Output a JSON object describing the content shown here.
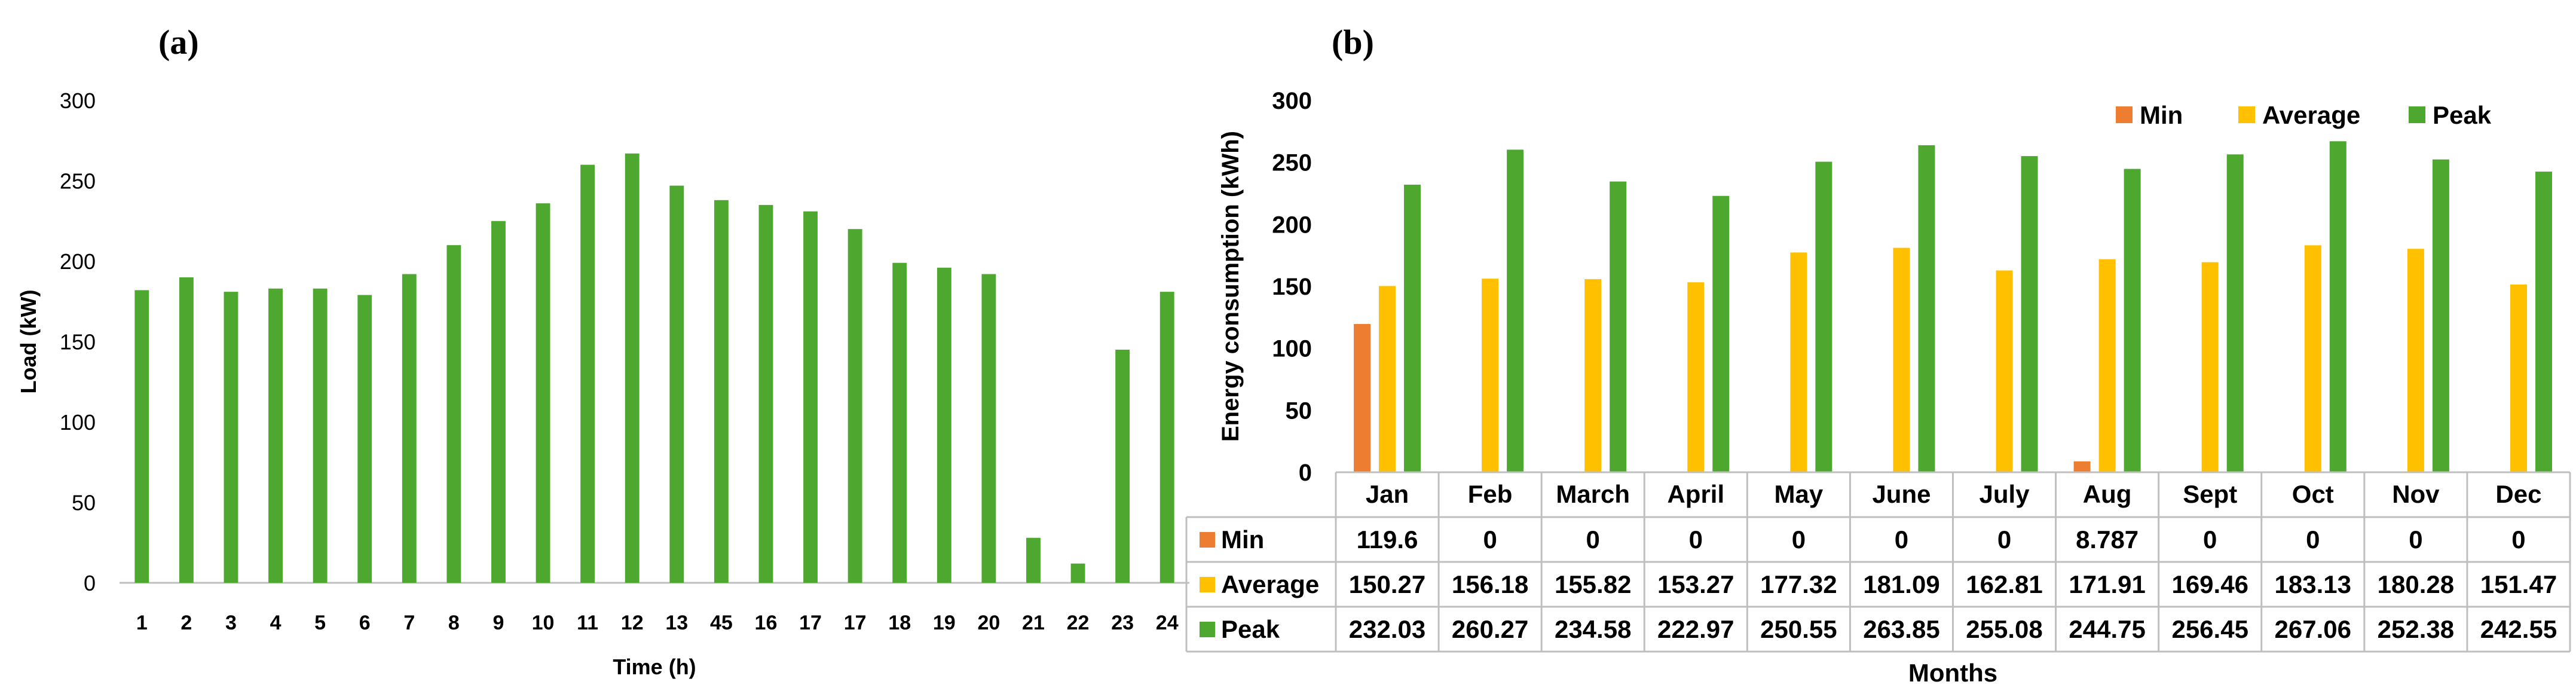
{
  "figure": {
    "label_a": "(a)",
    "label_b": "(b)"
  },
  "colors": {
    "min": "#ED7D31",
    "average": "#FFC000",
    "peak": "#4EA72E",
    "axis": "#BFBFBF",
    "text": "#000000"
  },
  "chart_data": [
    {
      "id": "a",
      "type": "bar",
      "title": "",
      "xlabel": "Time (h)",
      "ylabel": "Load (kW)",
      "ylim": [
        0,
        300
      ],
      "yticks": [
        0,
        50,
        100,
        150,
        200,
        250,
        300
      ],
      "grid": false,
      "categories": [
        "1",
        "2",
        "3",
        "4",
        "5",
        "6",
        "7",
        "8",
        "9",
        "10",
        "11",
        "12",
        "13",
        "45",
        "16",
        "17",
        "17",
        "18",
        "19",
        "20",
        "21",
        "22",
        "23",
        "24"
      ],
      "series": [
        {
          "name": "Load",
          "values": [
            182,
            190,
            181,
            183,
            183,
            179,
            192,
            210,
            225,
            236,
            260,
            267,
            247,
            238,
            235,
            231,
            220,
            199,
            196,
            192,
            28,
            12,
            145,
            181
          ]
        }
      ]
    },
    {
      "id": "b",
      "type": "bar",
      "title": "",
      "xlabel": "Months",
      "ylabel": "Energy consumption (kWh)",
      "ylim": [
        0,
        300
      ],
      "yticks": [
        0,
        50,
        100,
        150,
        200,
        250,
        300
      ],
      "grid": false,
      "legend_position": "top-right",
      "categories": [
        "Jan",
        "Feb",
        "March",
        "April",
        "May",
        "June",
        "July",
        "Aug",
        "Sept",
        "Oct",
        "Nov",
        "Dec"
      ],
      "series": [
        {
          "name": "Min",
          "values": [
            119.6,
            0,
            0,
            0,
            0,
            0,
            0,
            8.787,
            0,
            0,
            0,
            0
          ],
          "labels": [
            "119.6",
            "0",
            "0",
            "0",
            "0",
            "0",
            "0",
            "8.787",
            "0",
            "0",
            "0",
            "0"
          ]
        },
        {
          "name": "Average",
          "values": [
            150.27,
            156.18,
            155.82,
            153.27,
            177.32,
            181.09,
            162.81,
            171.91,
            169.46,
            183.13,
            180.28,
            151.47
          ],
          "labels": [
            "150.27",
            "156.18",
            "155.82",
            "153.27",
            "177.32",
            "181.09",
            "162.81",
            "171.91",
            "169.46",
            "183.13",
            "180.28",
            "151.47"
          ]
        },
        {
          "name": "Peak",
          "values": [
            232.03,
            260.27,
            234.58,
            222.97,
            250.55,
            263.85,
            255.08,
            244.75,
            256.45,
            267.06,
            252.38,
            242.55
          ],
          "labels": [
            "232.03",
            "260.27",
            "234.58",
            "222.97",
            "250.55",
            "263.85",
            "255.08",
            "244.75",
            "256.45",
            "267.06",
            "252.38",
            "242.55"
          ]
        }
      ]
    }
  ]
}
